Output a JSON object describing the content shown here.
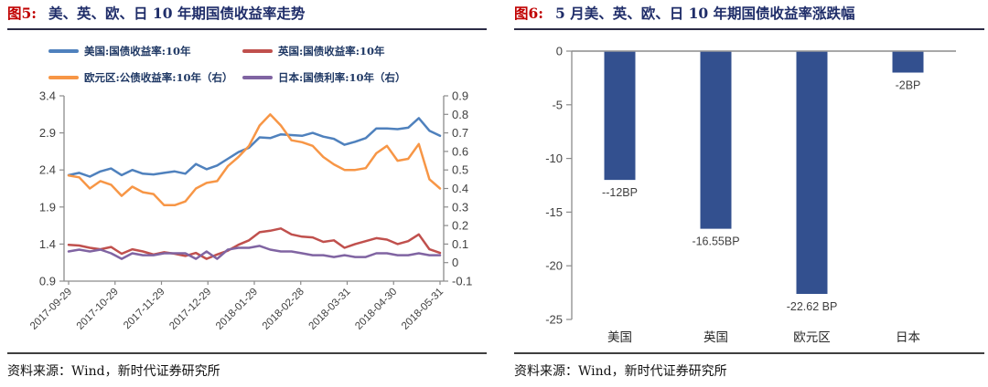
{
  "colors": {
    "title_navy": "#1f2d69",
    "fig_label_red": "#c00000",
    "axis_line": "#8c8c8c",
    "axis_text": "#404040",
    "legend_text": "#1f3864",
    "bar_fill": "#33508f",
    "category_text": "#262626",
    "data_label_text": "#3f3f3f"
  },
  "left_panel": {
    "fig_label": "图5:",
    "title": "美、英、欧、日 10 年期国债收益率走势",
    "source": "资料来源：Wind，新时代证券研究所"
  },
  "right_panel": {
    "fig_label": "图6:",
    "title": "5 月美、英、欧、日 10 年期国债收益率涨跌幅",
    "source": "资料来源：Wind，新时代证券研究所"
  },
  "chart_data": [
    {
      "type": "line",
      "title": "美、英、欧、日10年期国债收益率走势",
      "x_tick_labels": [
        "2017-09-29",
        "2017-10-29",
        "2017-11-29",
        "2017-12-29",
        "2018-01-29",
        "2018-02-28",
        "2018-03-31",
        "2018-04-30",
        "2018-05-31"
      ],
      "x_range_note": "daily series from 2017-09-29 to 2018-05-31, sampled ~weekly below",
      "grid": false,
      "legend_position": "top",
      "left_axis": {
        "min": 0.9,
        "max": 3.4,
        "ticks": [
          3.4,
          2.9,
          2.4,
          1.9,
          1.4,
          0.9
        ]
      },
      "right_axis": {
        "min": -0.1,
        "max": 0.9,
        "ticks": [
          0.9,
          0.8,
          0.7,
          0.6,
          0.5,
          0.4,
          0.3,
          0.2,
          0.1,
          0,
          -0.1
        ]
      },
      "series": [
        {
          "name": "美国:国债收益率:10年",
          "axis": "left",
          "color": "#4f81bd",
          "values": [
            2.33,
            2.36,
            2.31,
            2.38,
            2.42,
            2.33,
            2.4,
            2.35,
            2.34,
            2.36,
            2.38,
            2.35,
            2.48,
            2.41,
            2.46,
            2.55,
            2.64,
            2.7,
            2.84,
            2.83,
            2.88,
            2.87,
            2.86,
            2.9,
            2.85,
            2.82,
            2.74,
            2.78,
            2.83,
            2.96,
            2.96,
            2.95,
            2.97,
            3.1,
            2.93,
            2.86
          ]
        },
        {
          "name": "英国:国债收益率:10年",
          "axis": "left",
          "color": "#c0504d",
          "values": [
            1.39,
            1.38,
            1.35,
            1.33,
            1.36,
            1.27,
            1.33,
            1.3,
            1.26,
            1.29,
            1.27,
            1.24,
            1.28,
            1.2,
            1.26,
            1.31,
            1.39,
            1.45,
            1.56,
            1.58,
            1.61,
            1.53,
            1.5,
            1.49,
            1.43,
            1.45,
            1.35,
            1.4,
            1.44,
            1.48,
            1.46,
            1.4,
            1.44,
            1.53,
            1.33,
            1.28
          ]
        },
        {
          "name": "欧元区:公债收益率:10年（右）",
          "axis": "right",
          "color": "#f79646",
          "values": [
            0.47,
            0.46,
            0.4,
            0.44,
            0.42,
            0.36,
            0.41,
            0.38,
            0.37,
            0.31,
            0.31,
            0.33,
            0.4,
            0.43,
            0.44,
            0.52,
            0.57,
            0.63,
            0.74,
            0.8,
            0.74,
            0.66,
            0.65,
            0.63,
            0.57,
            0.53,
            0.5,
            0.5,
            0.51,
            0.59,
            0.63,
            0.55,
            0.56,
            0.64,
            0.45,
            0.4
          ]
        },
        {
          "name": "日本:国债利率:10年（右）",
          "axis": "right",
          "color": "#8064a2",
          "values": [
            0.06,
            0.07,
            0.06,
            0.07,
            0.05,
            0.02,
            0.05,
            0.04,
            0.04,
            0.05,
            0.05,
            0.05,
            0.02,
            0.06,
            0.02,
            0.07,
            0.08,
            0.08,
            0.09,
            0.07,
            0.06,
            0.06,
            0.05,
            0.04,
            0.04,
            0.03,
            0.04,
            0.03,
            0.03,
            0.05,
            0.05,
            0.04,
            0.04,
            0.05,
            0.04,
            0.04
          ]
        }
      ]
    },
    {
      "type": "bar",
      "title": "5月美、英、欧、日10年期国债收益率涨跌幅",
      "categories": [
        "美国",
        "英国",
        "欧元区",
        "日本"
      ],
      "values": [
        -12,
        -16.55,
        -22.62,
        -2
      ],
      "data_labels": [
        "--12BP",
        "-16.55BP",
        "-22.62 BP",
        "-2BP"
      ],
      "ylim": [
        -25,
        0
      ],
      "yticks": [
        0,
        -5,
        -10,
        -15,
        -20,
        -25
      ],
      "grid": false,
      "legend_position": "none"
    }
  ]
}
